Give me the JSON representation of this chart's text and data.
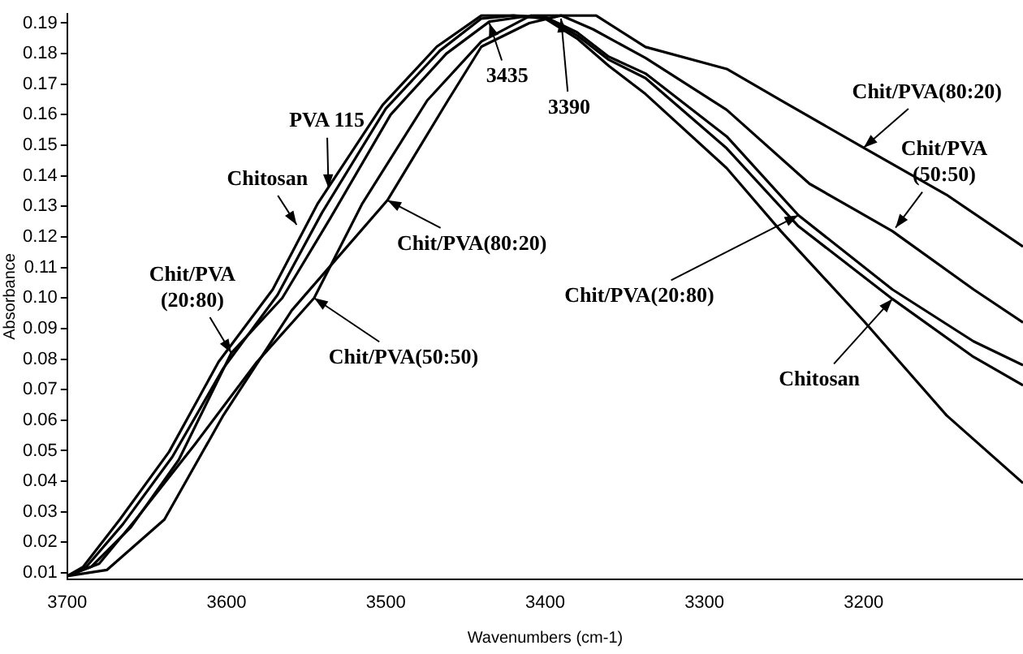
{
  "chart_data": {
    "type": "line",
    "xlabel": "Wavenumbers (cm-1)",
    "ylabel": "Absorbance",
    "xlim": [
      3700,
      3100
    ],
    "xticks": [
      3700,
      3600,
      3500,
      3400,
      3300,
      3200
    ],
    "ylim": [
      0.008,
      0.193
    ],
    "yticks": [
      0.01,
      0.02,
      0.03,
      0.04,
      0.05,
      0.06,
      0.07,
      0.08,
      0.09,
      {
        "value": 0.1,
        "label": "0.10"
      },
      0.11,
      0.12,
      0.13,
      0.14,
      0.15,
      0.16,
      0.17,
      0.18,
      0.19
    ],
    "grid": false,
    "legend": false,
    "series": [
      {
        "color": "#000000",
        "x": [
          3700,
          3690,
          3667,
          3636,
          3605,
          3571,
          3543,
          3502,
          3468,
          3440,
          3420,
          3400,
          3380,
          3360,
          3337,
          3286,
          3252,
          3200,
          3148,
          3100
        ],
        "values": [
          0.009,
          0.012,
          0.0275,
          0.0497,
          0.0791,
          0.1028,
          0.1307,
          0.1632,
          0.1823,
          0.1925,
          0.1925,
          0.1915,
          0.185,
          0.176,
          0.1668,
          0.1425,
          0.1219,
          0.0925,
          0.0616,
          0.0394
        ]
      },
      {
        "color": "#000000",
        "x": [
          3700,
          3688,
          3665,
          3634,
          3602,
          3568,
          3540,
          3500,
          3466,
          3440,
          3420,
          3400,
          3380,
          3360,
          3337,
          3286,
          3241,
          3182,
          3131,
          3100
        ],
        "values": [
          0.009,
          0.012,
          0.026,
          0.048,
          0.077,
          0.101,
          0.128,
          0.162,
          0.181,
          0.1915,
          0.1925,
          0.192,
          0.186,
          0.178,
          0.172,
          0.149,
          0.1235,
          0.0997,
          0.0807,
          0.0714
        ]
      },
      {
        "color": "#000000",
        "x": [
          3700,
          3685,
          3660,
          3630,
          3597,
          3565,
          3535,
          3497,
          3462,
          3435,
          3415,
          3400,
          3380,
          3360,
          3337,
          3286,
          3241,
          3182,
          3131,
          3100
        ],
        "values": [
          0.009,
          0.012,
          0.025,
          0.047,
          0.082,
          0.1,
          0.126,
          0.16,
          0.18,
          0.1905,
          0.192,
          0.192,
          0.187,
          0.179,
          0.1735,
          0.1529,
          0.1271,
          0.1028,
          0.0858,
          0.078
        ]
      },
      {
        "color": "#000000",
        "x": [
          3700,
          3680,
          3657,
          3620,
          3581,
          3545,
          3515,
          3474,
          3440,
          3409,
          3390,
          3370,
          3337,
          3286,
          3234,
          3182,
          3131,
          3100
        ],
        "values": [
          0.009,
          0.013,
          0.0275,
          0.052,
          0.079,
          0.1,
          0.1307,
          0.1647,
          0.184,
          0.1925,
          0.1925,
          0.188,
          0.1786,
          0.1616,
          0.1374,
          0.1219,
          0.1028,
          0.092
        ]
      },
      {
        "color": "#000000",
        "x": [
          3700,
          3675,
          3639,
          3602,
          3559,
          3499,
          3461,
          3440,
          3410,
          3390,
          3368,
          3337,
          3286,
          3252,
          3200,
          3148,
          3100
        ],
        "values": [
          0.009,
          0.011,
          0.0275,
          0.0616,
          0.096,
          0.132,
          0.1647,
          0.1823,
          0.19,
          0.1925,
          0.1925,
          0.1822,
          0.175,
          0.1647,
          0.1492,
          0.1338,
          0.1168
        ]
      }
    ],
    "annotations": [
      {
        "text": "PVA 115",
        "x": 3536,
        "y": 0.136
      },
      {
        "text": "Chitosan",
        "x": 3556,
        "y": 0.124
      },
      {
        "text": "Chit/PVA\n(20:80)",
        "x": 3597,
        "y": 0.082
      },
      {
        "text": "Chit/PVA(50:50)",
        "x": 3545,
        "y": 0.1
      },
      {
        "text": "Chit/PVA(80:20)",
        "x": 3499,
        "y": 0.132
      },
      {
        "text": "3435",
        "x": 3435,
        "y": 0.19
      },
      {
        "text": "3390",
        "x": 3390,
        "y": 0.1915
      },
      {
        "text": "Chit/PVA(80:20)",
        "x": 3200,
        "y": 0.1492
      },
      {
        "text": "Chit/PVA\n(50:50)",
        "x": 3180,
        "y": 0.123
      },
      {
        "text": "Chit/PVA(20:80)",
        "x": 3241,
        "y": 0.1271
      },
      {
        "text": "Chitosan",
        "x": 3182,
        "y": 0.0997
      }
    ]
  }
}
